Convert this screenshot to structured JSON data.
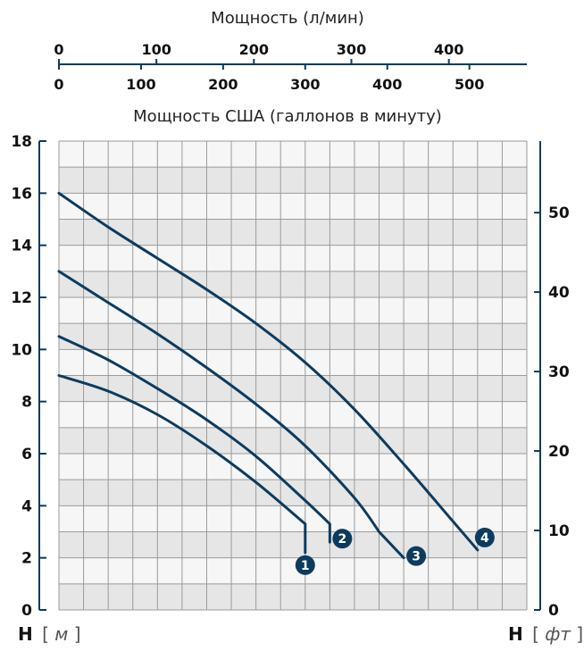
{
  "colors": {
    "accent": "#0d3b5e",
    "plot_bg_light": "#f6f6f6",
    "plot_bg_dark": "#e6e6e6",
    "grid": "#9a9a9a"
  },
  "chart_data": {
    "type": "line",
    "top_axes": [
      {
        "label": "Мощность (л/мин)",
        "ticks": [
          0,
          100,
          200,
          300,
          400
        ],
        "range": [
          0,
          480
        ]
      },
      {
        "label": "Мощность США (галлонов в минуту)",
        "ticks": [
          0,
          100,
          200,
          300,
          400,
          500
        ],
        "range": [
          0,
          570
        ]
      }
    ],
    "left_axis": {
      "label_main": "H",
      "label_unit": "м",
      "ticks": [
        0,
        2,
        4,
        6,
        8,
        10,
        12,
        14,
        16,
        18
      ],
      "range": [
        0,
        18
      ]
    },
    "right_axis": {
      "label_main": "H",
      "label_unit": "фт",
      "ticks": [
        0,
        10,
        20,
        30,
        40,
        50
      ],
      "range": [
        0,
        59
      ]
    },
    "x_range": [
      0,
      19
    ],
    "grid": true,
    "series": [
      {
        "label": "1",
        "points": [
          [
            0,
            9.0
          ],
          [
            2,
            8.4
          ],
          [
            4,
            7.5
          ],
          [
            6,
            6.3
          ],
          [
            8,
            4.9
          ],
          [
            10,
            3.3
          ],
          [
            10,
            2.2
          ]
        ]
      },
      {
        "label": "2",
        "points": [
          [
            0,
            10.5
          ],
          [
            2,
            9.6
          ],
          [
            4,
            8.5
          ],
          [
            6,
            7.3
          ],
          [
            8,
            5.9
          ],
          [
            10,
            4.2
          ],
          [
            11,
            3.3
          ],
          [
            11,
            2.6
          ]
        ]
      },
      {
        "label": "3",
        "points": [
          [
            0,
            13.0
          ],
          [
            2,
            11.8
          ],
          [
            4,
            10.6
          ],
          [
            6,
            9.3
          ],
          [
            8,
            7.9
          ],
          [
            10,
            6.3
          ],
          [
            12,
            4.3
          ],
          [
            13,
            3.0
          ],
          [
            14,
            2.0
          ]
        ]
      },
      {
        "label": "4",
        "points": [
          [
            0,
            16.0
          ],
          [
            2,
            14.7
          ],
          [
            4,
            13.5
          ],
          [
            6,
            12.3
          ],
          [
            8,
            11.0
          ],
          [
            10,
            9.5
          ],
          [
            12,
            7.7
          ],
          [
            14,
            5.6
          ],
          [
            16,
            3.4
          ],
          [
            17,
            2.3
          ]
        ]
      }
    ]
  }
}
